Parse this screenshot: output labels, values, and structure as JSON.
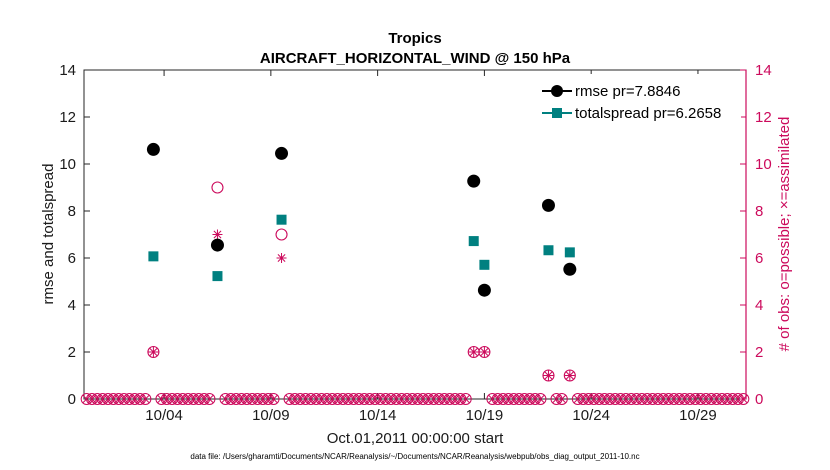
{
  "chart_data": {
    "type": "scatter",
    "title": "Tropics",
    "subtitle": "AIRCRAFT_HORIZONTAL_WIND @ 150 hPa",
    "xlabel": "Oct.01,2011 00:00:00 start",
    "ylabel": "rmse and totalspread",
    "ylabel_right": "# of obs: o=possible; ×=assimilated",
    "footnote": "data file: /Users/gharamti/Documents/NCAR/Reanalysis/~/Documents/NCAR/Reanalysis/webpub/obs_diag_output_2011-10.nc",
    "xlim": [
      0,
      31
    ],
    "ylim": [
      0,
      14
    ],
    "ylim_right": [
      0,
      14
    ],
    "xticks": [
      3.75,
      8.75,
      13.75,
      18.75,
      23.75,
      28.75
    ],
    "xtick_labels": [
      "10/04",
      "10/09",
      "10/14",
      "10/19",
      "10/24",
      "10/29"
    ],
    "yticks": [
      0,
      2,
      4,
      6,
      8,
      10,
      12,
      14
    ],
    "ytick_labels": [
      "0",
      "2",
      "4",
      "6",
      "8",
      "10",
      "12",
      "14"
    ],
    "yticks_right": [
      0,
      2,
      4,
      6,
      8,
      10,
      12,
      14
    ],
    "ytick_labels_right": [
      "0",
      "2",
      "4",
      "6",
      "8",
      "10",
      "12",
      "14"
    ],
    "colors": {
      "rmse": "#000000",
      "spread": "#008080",
      "obs": "#cc0a5c",
      "axis": "#262626"
    },
    "legend_placement": "top-right",
    "series": [
      {
        "name": "rmse",
        "legend": "rmse pr=7.8846",
        "x": [
          3.25,
          6.25,
          9.25,
          18.25,
          18.75,
          21.75,
          22.75
        ],
        "y": [
          10.62,
          6.55,
          10.45,
          9.27,
          4.63,
          8.24,
          5.52
        ]
      },
      {
        "name": "totalspread",
        "legend": "totalspread pr=6.2658",
        "x": [
          3.25,
          6.25,
          9.25,
          18.25,
          18.75,
          21.75,
          22.75
        ],
        "y": [
          6.07,
          5.23,
          7.63,
          6.72,
          5.71,
          6.33,
          6.24
        ]
      },
      {
        "name": "obs possible",
        "x": [
          3.25,
          6.25,
          9.25,
          18.25,
          18.75,
          21.75,
          22.75
        ],
        "y": [
          2,
          9,
          7,
          2,
          2,
          1,
          1
        ]
      },
      {
        "name": "obs assimilated",
        "x": [
          3.25,
          6.25,
          9.25,
          18.25,
          18.75,
          21.75,
          22.75
        ],
        "y": [
          2,
          7,
          6,
          2,
          2,
          1,
          1
        ]
      }
    ]
  }
}
